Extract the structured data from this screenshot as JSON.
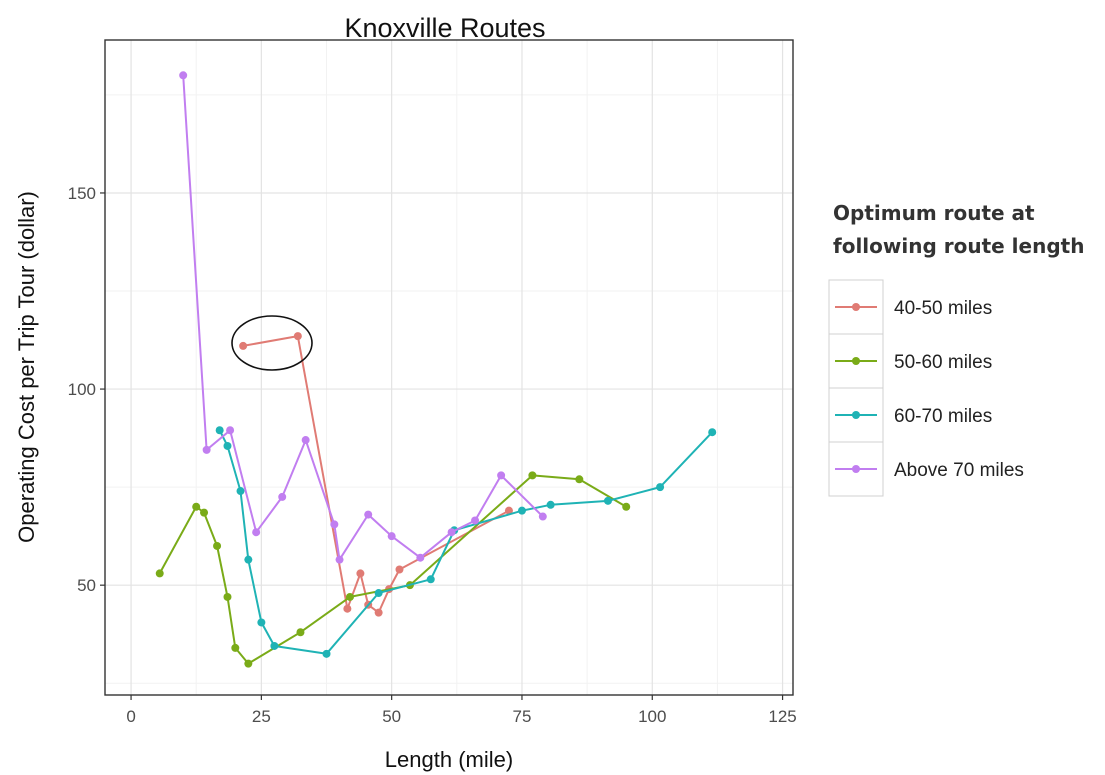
{
  "chart_data": {
    "type": "line",
    "title": "Knoxville Routes",
    "xlabel": "Length (mile)",
    "ylabel": "Operating Cost per Trip Tour (dollar)",
    "xlim": [
      -5,
      127
    ],
    "ylim": [
      22,
      189
    ],
    "x_ticks": [
      0,
      25,
      50,
      75,
      100,
      125
    ],
    "y_ticks": [
      50,
      100,
      150
    ],
    "x_tick_labels": [
      "0",
      "25",
      "50",
      "75",
      "100",
      "125"
    ],
    "y_tick_labels": [
      "50",
      "100",
      "150"
    ],
    "grid": true,
    "legend": {
      "title_lines": [
        "Optimum route at",
        "following route length"
      ],
      "position": "right"
    },
    "annotation": "ellipse around the two highest points of the 40-50 miles series",
    "series": [
      {
        "name": "40-50 miles",
        "color": "#e07b74",
        "x": [
          21.5,
          32,
          41.5,
          44,
          45.5,
          47.5,
          49.5,
          51.5,
          72.5
        ],
        "y": [
          111,
          113.5,
          44,
          53,
          45,
          43,
          49,
          54,
          69
        ]
      },
      {
        "name": "50-60 miles",
        "color": "#7aab18",
        "x": [
          5.5,
          12.5,
          14,
          16.5,
          18.5,
          20,
          22.5,
          32.5,
          42,
          53.5,
          77,
          86,
          95
        ],
        "y": [
          53,
          70,
          68.5,
          60,
          47,
          34,
          30,
          38,
          47,
          50,
          78,
          77,
          70
        ]
      },
      {
        "name": "60-70 miles",
        "color": "#1fb3b5",
        "x": [
          17,
          18.5,
          21,
          22.5,
          25,
          27.5,
          37.5,
          47.5,
          57.5,
          62,
          75,
          80.5,
          91.5,
          101.5,
          111.5
        ],
        "y": [
          89.5,
          85.5,
          74,
          56.5,
          40.5,
          34.5,
          32.5,
          48,
          51.5,
          64,
          69,
          70.5,
          71.5,
          75,
          89
        ]
      },
      {
        "name": "Above 70 miles",
        "color": "#c17ef0",
        "x": [
          10,
          14.5,
          19,
          24,
          29,
          33.5,
          39,
          40,
          45.5,
          50,
          55.5,
          61.5,
          66,
          71,
          79
        ],
        "y": [
          180,
          84.5,
          89.5,
          63.5,
          72.5,
          87,
          65.5,
          56.5,
          68,
          62.5,
          57,
          63.5,
          66.5,
          78,
          67.5
        ]
      }
    ]
  }
}
